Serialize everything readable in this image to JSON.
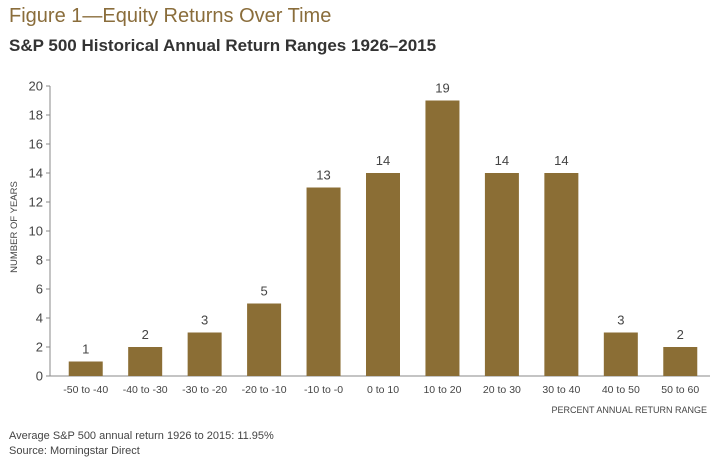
{
  "header": {
    "title": "Figure 1—Equity Returns Over Time",
    "subtitle": "S&P 500 Historical Annual Return Ranges 1926–2015"
  },
  "notes": {
    "average": "Average S&P 500 annual return 1926 to 2015: 11.95%",
    "source": "Source: Morningstar Direct"
  },
  "colors": {
    "bar": "#8b6e35",
    "axis": "#888888",
    "text": "#444444"
  },
  "chart_data": {
    "type": "bar",
    "title": "S&P 500 Historical Annual Return Ranges 1926–2015",
    "xlabel": "PERCENT ANNUAL RETURN RANGE",
    "ylabel": "NUMBER OF YEARS",
    "categories": [
      "-50 to -40",
      "-40 to -30",
      "-30 to -20",
      "-20 to -10",
      "-10 to -0",
      "0 to 10",
      "10 to 20",
      "20 to 30",
      "30 to 40",
      "40 to 50",
      "50 to 60"
    ],
    "values": [
      1,
      2,
      3,
      5,
      13,
      14,
      19,
      14,
      14,
      3,
      2
    ],
    "ylim": [
      0,
      20
    ],
    "yticks": [
      0,
      2,
      4,
      6,
      8,
      10,
      12,
      14,
      16,
      18,
      20
    ],
    "grid": false,
    "data_labels": true
  }
}
